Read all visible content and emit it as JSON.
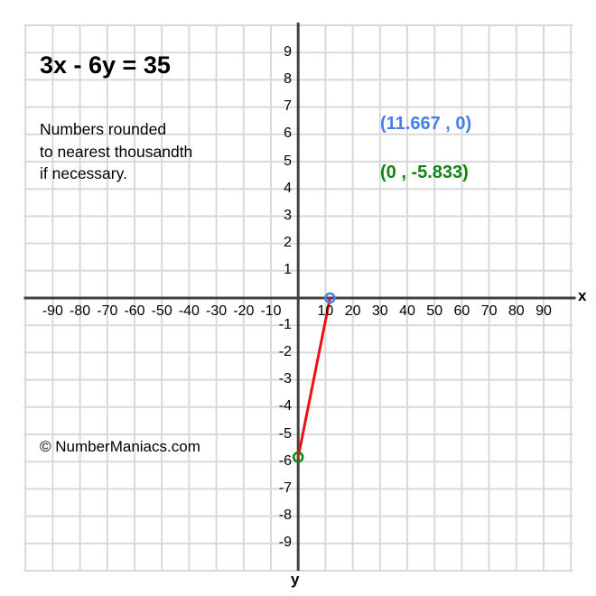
{
  "page": {
    "equation_title": "3x - 6y = 35"
  },
  "annotations": {
    "note_line1": "Numbers rounded",
    "note_line2": "to nearest thousandth",
    "note_line3": "if necessary.",
    "watermark": "© NumberManiacs.com"
  },
  "colors": {
    "grid": "#d9d9d9",
    "axis": "#404040",
    "line": "#ee1111",
    "x_intercept": "#4580e8",
    "y_intercept": "#108410",
    "text": "#000000"
  },
  "chart_data": {
    "type": "line",
    "title": "3x - 6y = 35",
    "equation": "3x - 6y = 35",
    "note": "Numbers rounded to nearest thousandth if necessary.",
    "x_axis_label": "x",
    "y_axis_label": "y",
    "xlim": [
      -100,
      100
    ],
    "ylim": [
      -10,
      10
    ],
    "grid": true,
    "x_ticks": [
      -90,
      -80,
      -70,
      -60,
      -50,
      -40,
      -30,
      -20,
      -10,
      10,
      20,
      30,
      40,
      50,
      60,
      70,
      80,
      90
    ],
    "y_ticks": [
      9,
      8,
      7,
      6,
      5,
      4,
      3,
      2,
      1,
      -1,
      -2,
      -3,
      -4,
      -5,
      -6,
      -7,
      -8,
      -9
    ],
    "series": [
      {
        "name": "3x - 6y = 35",
        "color": "#ee1111",
        "points": [
          {
            "x": 0,
            "y": -5.833
          },
          {
            "x": 11.667,
            "y": 0
          }
        ]
      }
    ],
    "intercepts": {
      "x_intercept": {
        "x": 11.667,
        "y": 0,
        "label": "(11.667 , 0)",
        "color": "#4580e8"
      },
      "y_intercept": {
        "x": 0,
        "y": -5.833,
        "label": "(0 , -5.833)",
        "color": "#108410"
      }
    }
  }
}
